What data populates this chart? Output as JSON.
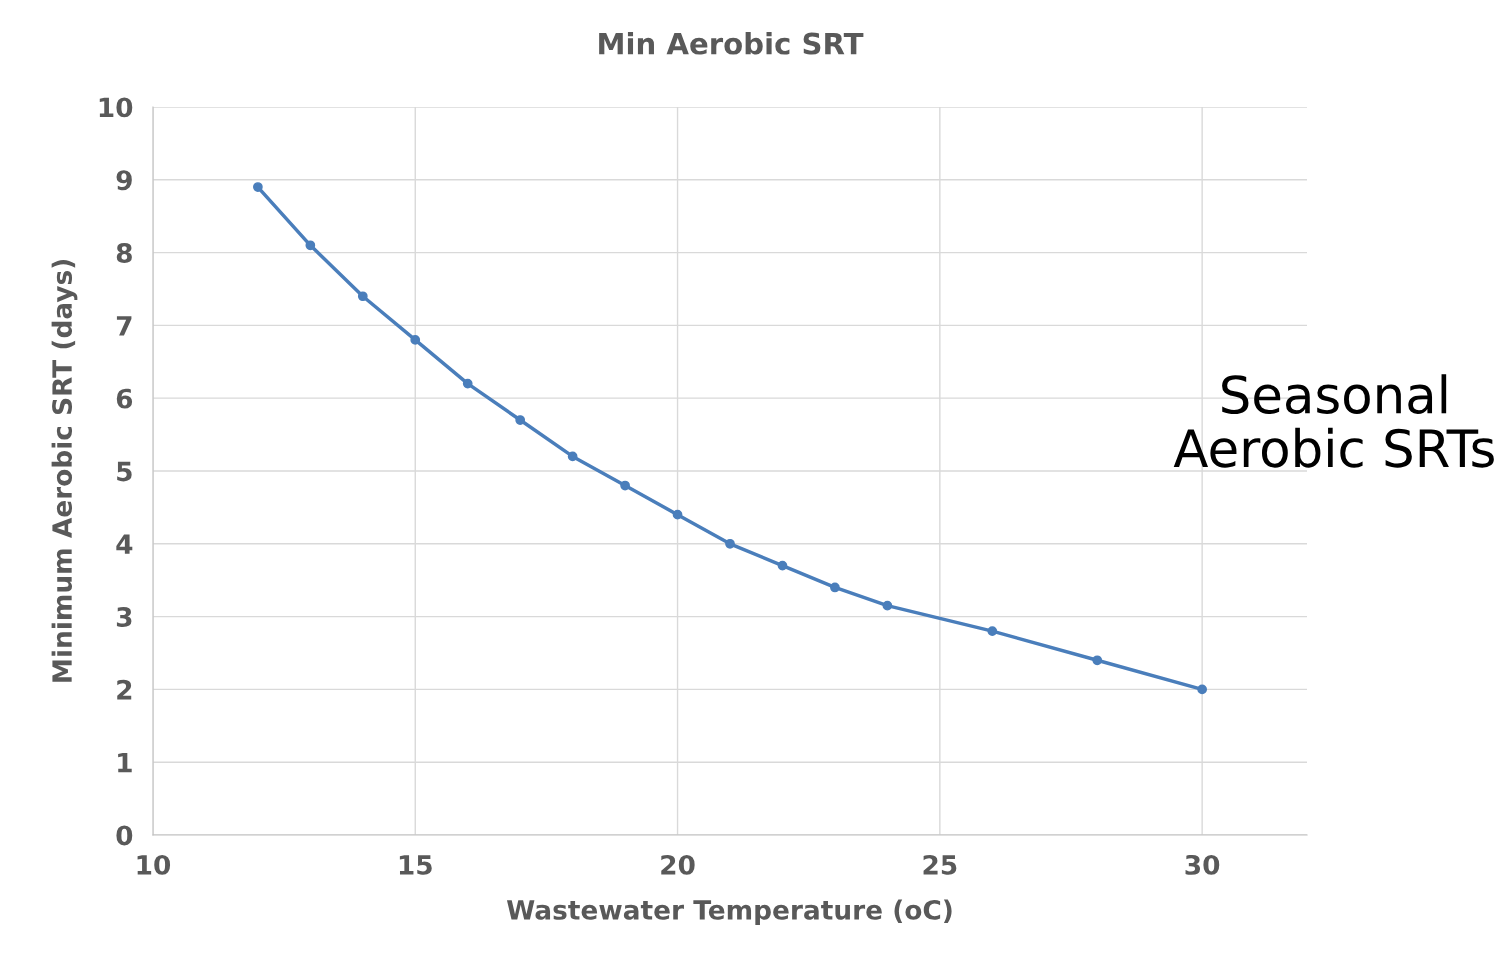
{
  "chart_data": {
    "type": "line",
    "title": "Min Aerobic SRT",
    "xlabel": "Wastewater Temperature (oC)",
    "ylabel": "Minimum Aerobic SRT (days)",
    "x": [
      12,
      13,
      14,
      15,
      16,
      17,
      18,
      19,
      20,
      21,
      22,
      23,
      24,
      26,
      28,
      30
    ],
    "series": [
      {
        "color": "#4a7ebb",
        "values": [
          8.9,
          8.1,
          7.4,
          6.8,
          6.2,
          5.7,
          5.2,
          4.8,
          4.4,
          4.0,
          3.7,
          3.4,
          3.15,
          2.8,
          2.4,
          2.0
        ]
      }
    ],
    "xlim": [
      10,
      32
    ],
    "xticks": [
      10,
      15,
      20,
      25,
      30
    ],
    "ylim": [
      0,
      10
    ],
    "yticks": [
      0,
      1,
      2,
      3,
      4,
      5,
      6,
      7,
      8,
      9,
      10
    ],
    "grid": true,
    "marker": "circle",
    "line_style": "solid",
    "annotations": [
      "Seasonal\nAerobic SRTs"
    ]
  }
}
